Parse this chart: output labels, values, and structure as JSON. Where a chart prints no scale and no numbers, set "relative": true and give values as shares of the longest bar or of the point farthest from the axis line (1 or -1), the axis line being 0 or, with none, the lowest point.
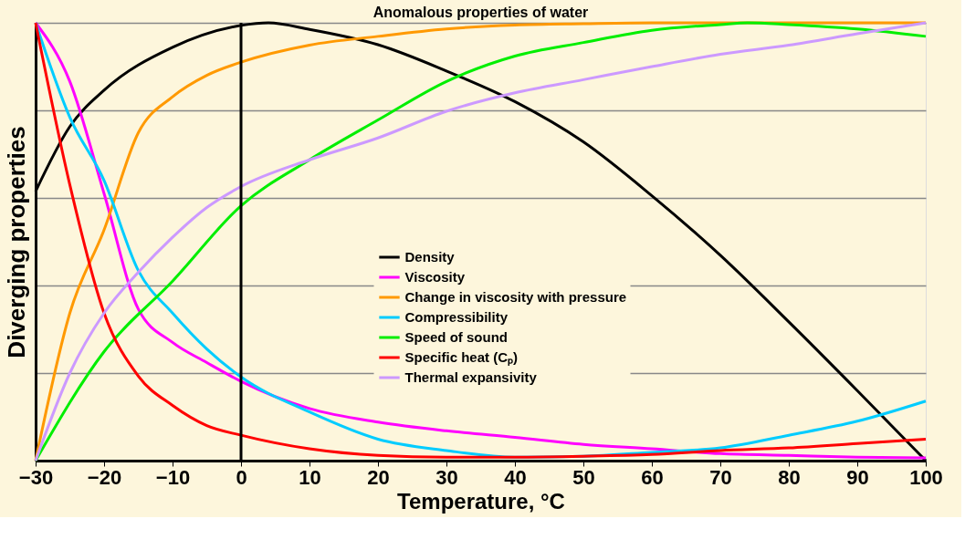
{
  "chart_data": {
    "type": "line",
    "title": "Anomalous properties of water",
    "xlabel": "Temperature, °C",
    "ylabel": "Diverging properties",
    "relative": true,
    "xlim": [
      -30,
      100
    ],
    "xticks": [
      -30,
      -20,
      -10,
      0,
      10,
      20,
      30,
      40,
      50,
      60,
      70,
      80,
      90,
      100
    ],
    "grid": "y",
    "legend": "center",
    "marker": "none",
    "line_style": "solid",
    "ref_lines": [
      {
        "axis": "x",
        "value": 0,
        "color": "#000000"
      }
    ],
    "series": [
      {
        "name": "Density",
        "color": "#000000",
        "x": [
          -30,
          -25,
          -20,
          -10,
          0,
          4,
          10,
          20,
          30,
          40,
          50,
          60,
          70,
          80,
          90,
          100
        ],
        "values": [
          0.615,
          0.763,
          0.846,
          0.944,
          0.994,
          1.0,
          0.985,
          0.95,
          0.89,
          0.82,
          0.728,
          0.605,
          0.469,
          0.317,
          0.16,
          0.0
        ]
      },
      {
        "name": "Viscosity",
        "color": "#ff00ff",
        "x": [
          -30,
          -25,
          -20,
          -15,
          -10,
          -5,
          0,
          10,
          20,
          30,
          40,
          50,
          60,
          70,
          80,
          90,
          100
        ],
        "values": [
          1.0,
          0.866,
          0.61,
          0.346,
          0.27,
          0.224,
          0.181,
          0.119,
          0.088,
          0.068,
          0.053,
          0.037,
          0.027,
          0.016,
          0.012,
          0.008,
          0.006
        ]
      },
      {
        "name": "Change in viscosity with pressure",
        "color": "#ff9900",
        "x": [
          -30,
          -25,
          -20,
          -15,
          -10,
          -5,
          0,
          10,
          20,
          30,
          40,
          50,
          60,
          70,
          80,
          90,
          100
        ],
        "values": [
          0.0,
          0.337,
          0.527,
          0.749,
          0.831,
          0.88,
          0.91,
          0.949,
          0.969,
          0.986,
          0.995,
          0.998,
          1.0,
          1.0,
          1.0,
          1.0,
          1.0
        ]
      },
      {
        "name": "Compressibility",
        "color": "#00ccff",
        "x": [
          -30,
          -25,
          -20,
          -15,
          -10,
          -5,
          0,
          10,
          20,
          30,
          40,
          50,
          60,
          70,
          80,
          90,
          100
        ],
        "values": [
          1.0,
          0.784,
          0.64,
          0.434,
          0.337,
          0.255,
          0.191,
          0.111,
          0.049,
          0.023,
          0.008,
          0.01,
          0.019,
          0.029,
          0.058,
          0.09,
          0.136
        ]
      },
      {
        "name": "Speed of sound",
        "color": "#00ee00",
        "x": [
          -30,
          -20,
          -10,
          0,
          10,
          20,
          30,
          40,
          50,
          60,
          70,
          74,
          80,
          90,
          100
        ],
        "values": [
          0.0,
          0.249,
          0.41,
          0.582,
          0.687,
          0.778,
          0.866,
          0.924,
          0.955,
          0.983,
          0.996,
          1.0,
          0.996,
          0.986,
          0.969
        ]
      },
      {
        "name": "Specific heat (Cₚ)",
        "color": "#ff0000",
        "x": [
          -30,
          -25,
          -20,
          -15,
          -10,
          -5,
          0,
          10,
          20,
          30,
          40,
          50,
          60,
          70,
          80,
          90,
          100
        ],
        "values": [
          1.0,
          0.63,
          0.337,
          0.193,
          0.126,
          0.08,
          0.058,
          0.027,
          0.012,
          0.008,
          0.008,
          0.01,
          0.014,
          0.023,
          0.029,
          0.039,
          0.049
        ]
      },
      {
        "name": "Thermal expansivity",
        "color": "#cc99ff",
        "x": [
          -30,
          -25,
          -20,
          -15,
          -10,
          -5,
          0,
          10,
          20,
          30,
          40,
          50,
          60,
          70,
          80,
          90,
          100
        ],
        "values": [
          0.0,
          0.2,
          0.337,
          0.43,
          0.51,
          0.578,
          0.626,
          0.687,
          0.737,
          0.798,
          0.84,
          0.87,
          0.9,
          0.928,
          0.949,
          0.975,
          1.0
        ]
      }
    ]
  }
}
